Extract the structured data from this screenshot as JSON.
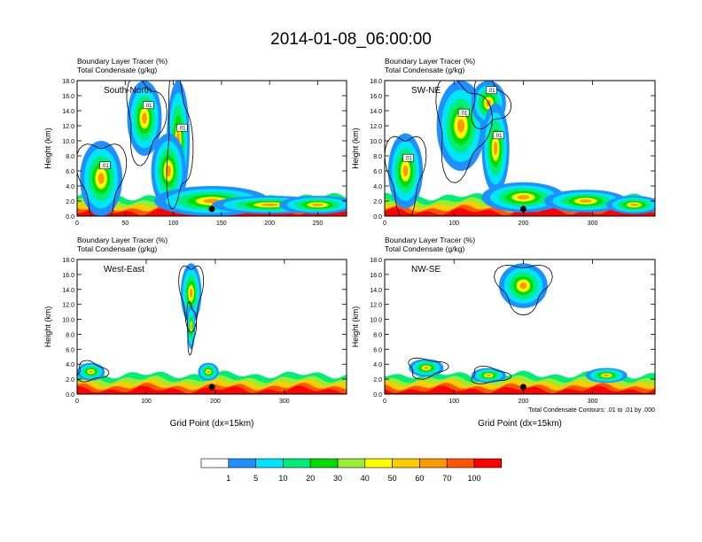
{
  "title": "2014-01-08_06:00:00",
  "chart_data": [
    {
      "type": "heatmap",
      "panel": "South-North",
      "label_left": "Boundary Layer Tracer   (%)",
      "label_left2": "Total Condensate   (g/kg)",
      "ylabel": "Height (km)",
      "xlabel": "",
      "xlim": [
        0,
        280
      ],
      "ylim": [
        0,
        18
      ],
      "xticks": [
        0,
        50,
        100,
        150,
        200,
        250
      ],
      "yticks": [
        "0.0",
        "2.0",
        "4.0",
        "6.0",
        "8.0",
        "10.0",
        "12.0",
        "14.0",
        "16.0",
        "18.0"
      ],
      "marker_x": 140,
      "contour_labels": [
        ".01",
        ".01",
        ".01"
      ],
      "tracer_blobs": [
        [
          25,
          5,
          22,
          5
        ],
        [
          70,
          13,
          18,
          5
        ],
        [
          105,
          10,
          12,
          8
        ],
        [
          95,
          6,
          18,
          5
        ],
        [
          140,
          2,
          60,
          2
        ],
        [
          200,
          1.5,
          60,
          1.2
        ],
        [
          250,
          1.5,
          40,
          1.2
        ]
      ]
    },
    {
      "type": "heatmap",
      "panel": "SW-NE",
      "label_left": "Boundary Layer Tracer   (%)",
      "label_left2": "Total Condensate   (g/kg)",
      "ylabel": "Height (km)",
      "xlabel": "",
      "xlim": [
        0,
        390
      ],
      "ylim": [
        0,
        18
      ],
      "xticks": [
        0,
        100,
        200,
        300
      ],
      "yticks": [
        "0.0",
        "2.0",
        "4.0",
        "6.0",
        "8.0",
        "10.0",
        "12.0",
        "14.0",
        "16.0",
        "18.0"
      ],
      "marker_x": 200,
      "contour_labels": [
        ".01",
        ".01",
        ".01",
        ".01"
      ],
      "tracer_blobs": [
        [
          30,
          6,
          25,
          5
        ],
        [
          110,
          12,
          35,
          6
        ],
        [
          150,
          15,
          25,
          3
        ],
        [
          160,
          9,
          20,
          6
        ],
        [
          200,
          2.5,
          60,
          2
        ],
        [
          290,
          2,
          60,
          1.5
        ],
        [
          360,
          1.5,
          40,
          1.2
        ]
      ]
    },
    {
      "type": "heatmap",
      "panel": "West-East",
      "label_left": "Boundary Layer Tracer   (%)",
      "label_left2": "Total Condensate   (g/kg)",
      "ylabel": "Height (km)",
      "xlabel": "Grid Point (dx=15km)",
      "xlim": [
        0,
        390
      ],
      "ylim": [
        0,
        18
      ],
      "xticks": [
        0,
        100,
        200,
        300
      ],
      "yticks": [
        "0.0",
        "2.0",
        "4.0",
        "6.0",
        "8.0",
        "10.0",
        "12.0",
        "14.0",
        "16.0",
        "18.0"
      ],
      "marker_x": 195,
      "contour_labels": [],
      "tracer_blobs": [
        [
          165,
          13.5,
          15,
          4
        ],
        [
          165,
          9,
          6,
          3
        ],
        [
          20,
          3,
          20,
          1.2
        ],
        [
          190,
          3,
          15,
          1.2
        ]
      ]
    },
    {
      "type": "heatmap",
      "panel": "NW-SE",
      "label_left": "Boundary Layer Tracer   (%)",
      "label_left2": "Total Condensate   (g/kg)",
      "ylabel": "Height (km)",
      "xlabel": "Grid Point (dx=15km)",
      "xlim": [
        0,
        390
      ],
      "ylim": [
        0,
        18
      ],
      "xticks": [
        0,
        100,
        200,
        300
      ],
      "yticks": [
        "0.0",
        "2.0",
        "4.0",
        "6.0",
        "8.0",
        "10.0",
        "12.0",
        "14.0",
        "16.0",
        "18.0"
      ],
      "marker_x": 200,
      "contour_labels": [],
      "footnote": "Total Condensate Contours: .01 to .01 by .000",
      "tracer_blobs": [
        [
          200,
          14.5,
          35,
          3
        ],
        [
          60,
          3.5,
          25,
          1.2
        ],
        [
          150,
          2.5,
          25,
          1
        ],
        [
          320,
          2.5,
          30,
          1
        ]
      ]
    }
  ],
  "colorbar": {
    "labels": [
      "1",
      "5",
      "10",
      "20",
      "30",
      "40",
      "50",
      "60",
      "70",
      "100"
    ],
    "colors": [
      "#ffffff",
      "#1e90ff",
      "#00e5ff",
      "#00ee77",
      "#00dd00",
      "#99ee33",
      "#ffff00",
      "#ffcc00",
      "#ff9900",
      "#ff5500",
      "#ff0000"
    ]
  }
}
